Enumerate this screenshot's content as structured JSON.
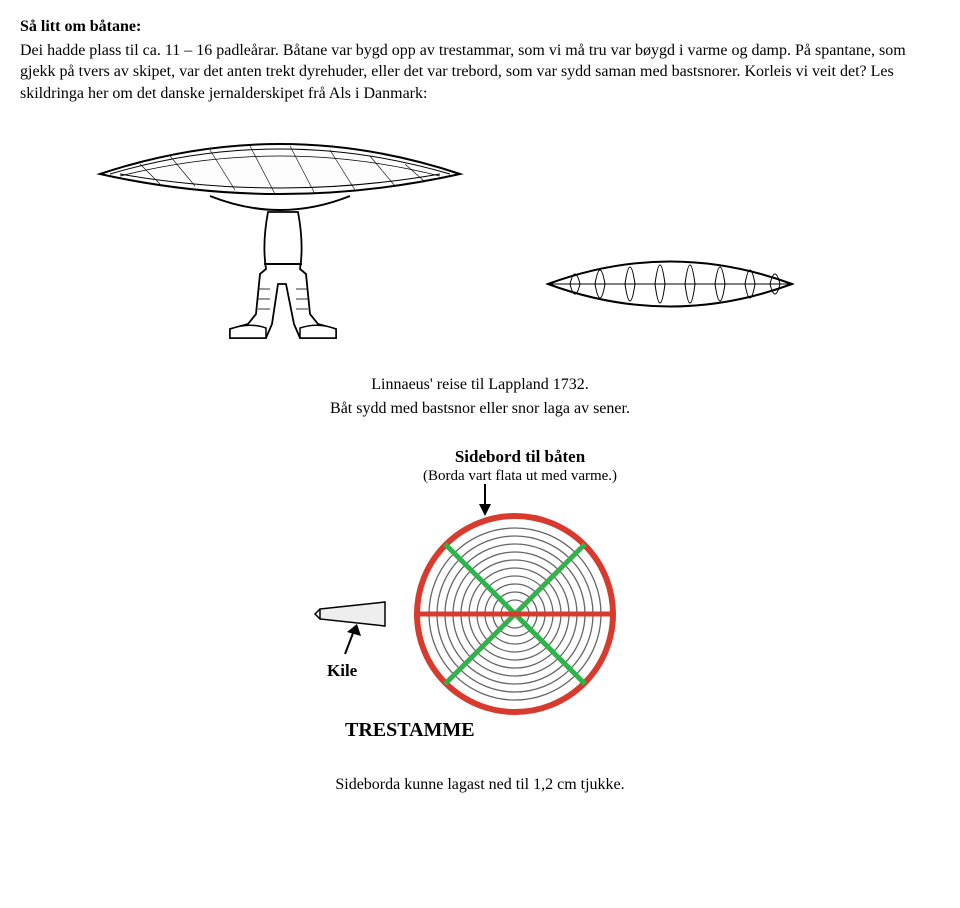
{
  "heading": "Så litt om båtane:",
  "para1": "Dei hadde plass til ca. 11 – 16 padleårar. Båtane var bygd opp av trestammar, som vi må tru var bøygd i varme og damp. På spantane, som gjekk på tvers av skipet, var det anten trekt dyrehuder, eller det var trebord, som var sydd saman med bastsnorer. Korleis vi veit det? Les skildringa her om det danske jernalderskipet frå Als i Danmark:",
  "caption1_line1": "Linnaeus' reise til Lappland 1732.",
  "caption1_line2": "Båt sydd med bastsnor eller snor laga av sener.",
  "diagram": {
    "label_top_title": "Sidebord til båten",
    "label_top_sub": "(Borda vart flata ut med varme.)",
    "label_kile": "Kile",
    "label_trestamme": "TRESTAMME",
    "colors": {
      "outer_ring": "#d93a2e",
      "inner_rings": "#cfcfcf",
      "ring_stroke": "#666666",
      "cross_green": "#2fb34a",
      "cross_red": "#d93a2e",
      "text": "#000000",
      "kile_fill": "#eeeeee"
    }
  },
  "caption2": "Sideborda kunne lagast ned til 1,2 cm tjukke."
}
